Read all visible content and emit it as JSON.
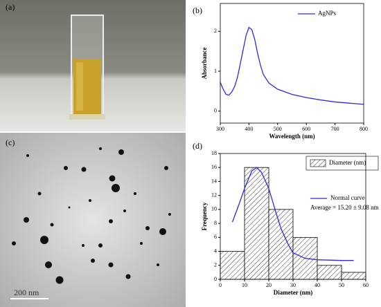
{
  "panels": {
    "a": "(a)",
    "b": "(b)",
    "c": "(c)",
    "d": "(d)"
  },
  "scale_bar": "200 nm",
  "chart_data": [
    {
      "type": "line",
      "xlabel": "Wavelength (nm)",
      "ylabel": "Absorbance",
      "x": [
        300,
        310,
        320,
        330,
        340,
        350,
        360,
        370,
        380,
        390,
        400,
        410,
        420,
        430,
        440,
        450,
        470,
        500,
        550,
        600,
        650,
        700,
        750,
        800
      ],
      "series": [
        {
          "name": "AgNPs",
          "color": "#2a2ae0",
          "values": [
            0.72,
            0.55,
            0.42,
            0.4,
            0.48,
            0.62,
            0.85,
            1.2,
            1.55,
            1.9,
            2.1,
            2.04,
            1.8,
            1.45,
            1.15,
            0.92,
            0.7,
            0.55,
            0.42,
            0.34,
            0.28,
            0.23,
            0.2,
            0.17
          ]
        }
      ],
      "xlim": [
        300,
        800
      ],
      "xticks": [
        300,
        400,
        500,
        600,
        700,
        800
      ],
      "ylim": [
        -0.3,
        2.7
      ],
      "yticks": [
        0,
        1,
        2
      ]
    },
    {
      "type": "histogram",
      "xlabel": "Diameter (nm)",
      "ylabel": "Frequency",
      "name": "Diameter (nm)",
      "bins": [
        0,
        10,
        20,
        30,
        40,
        50,
        60
      ],
      "counts": [
        4,
        16,
        10,
        6,
        2,
        1
      ],
      "curve": {
        "name": "Normal curve",
        "color": "#2a2ae0",
        "x": [
          5,
          8,
          10,
          13,
          15,
          17,
          20,
          23,
          25,
          28,
          30,
          35,
          40,
          45,
          50,
          55
        ],
        "values": [
          8.2,
          11,
          13,
          15.5,
          16,
          15.3,
          13,
          9.5,
          7.3,
          5,
          3.8,
          3,
          2.8,
          2.75,
          2.7,
          2.7
        ]
      },
      "annotation": "Average = 15.20 ± 9.08 nm",
      "xlim": [
        0,
        60
      ],
      "xticks": [
        0,
        10,
        20,
        30,
        40,
        50,
        60
      ],
      "ylim": [
        0,
        18
      ],
      "yticks": [
        0,
        2,
        4,
        6,
        8,
        10,
        12,
        14,
        16,
        18
      ]
    }
  ]
}
